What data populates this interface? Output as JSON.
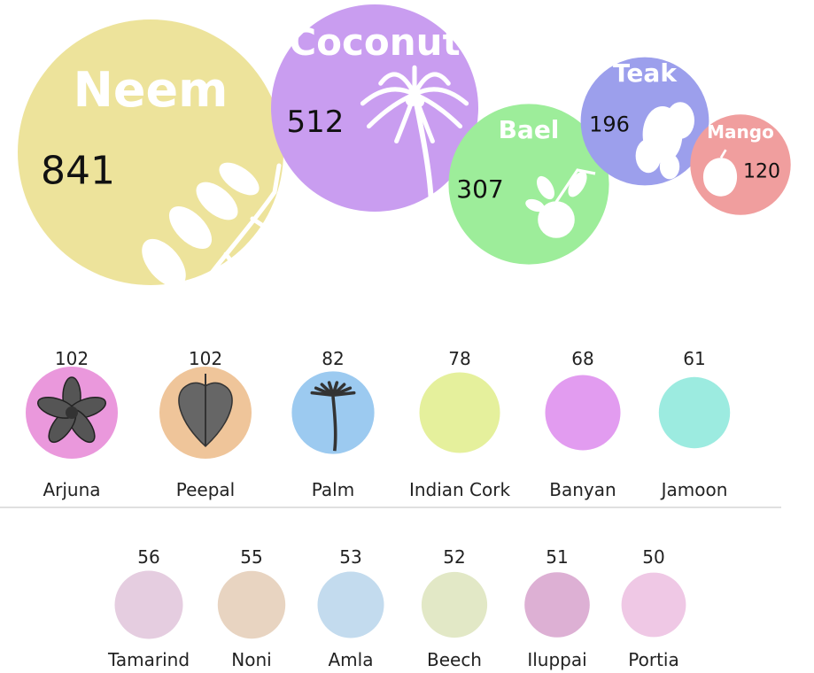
{
  "chart_data": {
    "type": "bubble",
    "title": "",
    "featured": [
      {
        "name": "Neem",
        "value": 841,
        "color": "#ede39b",
        "icon": "neem-branch-icon"
      },
      {
        "name": "Coconut",
        "value": 512,
        "color": "#c99df0",
        "icon": "coconut-palm-icon"
      },
      {
        "name": "Bael",
        "value": 307,
        "color": "#9ded9a",
        "icon": "bael-fruit-icon"
      },
      {
        "name": "Teak",
        "value": 196,
        "color": "#9c9fec",
        "icon": "teak-leaves-icon"
      },
      {
        "name": "Mango",
        "value": 120,
        "color": "#f09e9e",
        "icon": "mango-icon"
      }
    ],
    "middle_row": [
      {
        "name": "Arjuna",
        "value": 102,
        "color": "#ea98dc",
        "icon": "arjuna-fruit-icon"
      },
      {
        "name": "Peepal",
        "value": 102,
        "color": "#efc59a",
        "icon": "peepal-leaf-icon"
      },
      {
        "name": "Palm",
        "value": 82,
        "color": "#9ccaf0",
        "icon": "palm-tree-icon"
      },
      {
        "name": "Indian Cork",
        "value": 78,
        "color": "#e5f09c",
        "icon": ""
      },
      {
        "name": "Banyan",
        "value": 68,
        "color": "#e29cf0",
        "icon": ""
      },
      {
        "name": "Jamoon",
        "value": 61,
        "color": "#9cebe0",
        "icon": ""
      }
    ],
    "bottom_row": [
      {
        "name": "Tamarind",
        "value": 56,
        "color": "#e5cde0"
      },
      {
        "name": "Noni",
        "value": 55,
        "color": "#e8d4c1"
      },
      {
        "name": "Amla",
        "value": 53,
        "color": "#c3dbee"
      },
      {
        "name": "Beech",
        "value": 52,
        "color": "#e2e8c6"
      },
      {
        "name": "Iluppai",
        "value": 51,
        "color": "#ddb0d4"
      },
      {
        "name": "Portia",
        "value": 50,
        "color": "#efc8e5"
      }
    ]
  }
}
